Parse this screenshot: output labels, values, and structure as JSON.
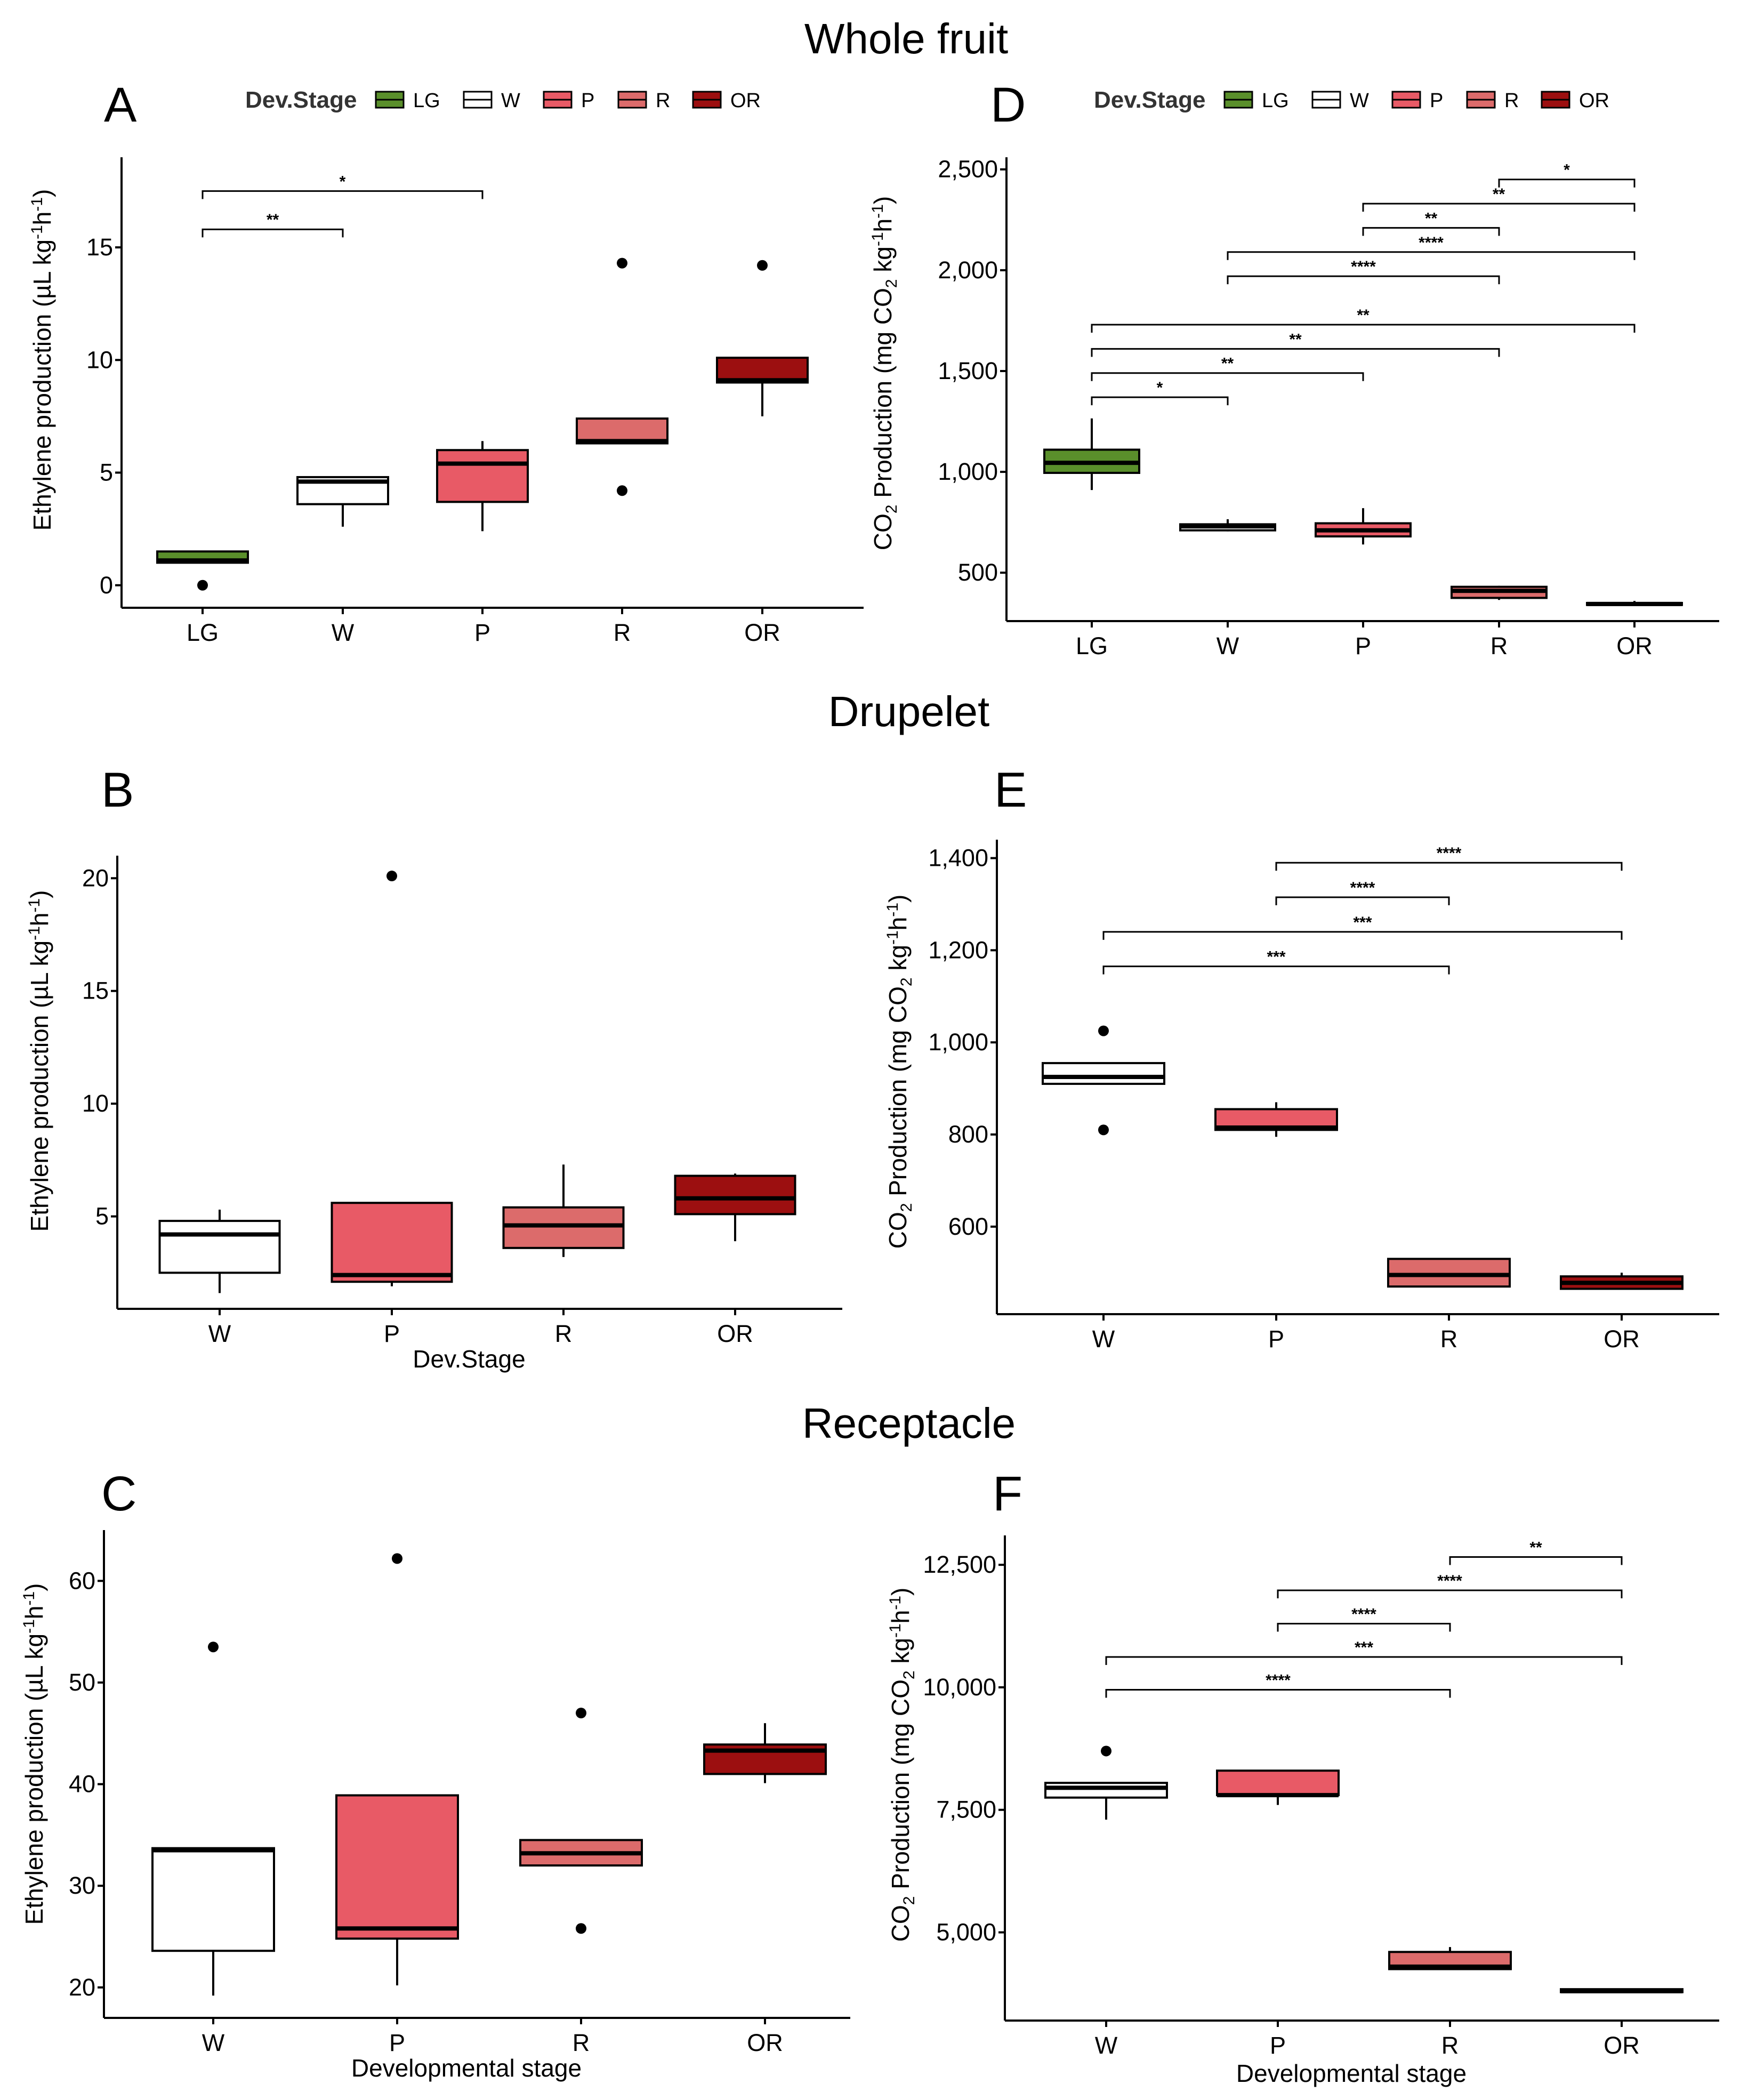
{
  "figure": {
    "titles": {
      "whole_fruit": "Whole fruit",
      "drupelet": "Drupelet",
      "receptacle": "Receptacle"
    },
    "legend": {
      "title": "Dev.Stage",
      "entries": [
        {
          "label": "LG",
          "color": "#5a8f2b"
        },
        {
          "label": "W",
          "color": "#ffffff"
        },
        {
          "label": "P",
          "color": "#e85a66"
        },
        {
          "label": "R",
          "color": "#dc6b6b"
        },
        {
          "label": "OR",
          "color": "#9c0f10"
        }
      ]
    },
    "colors": {
      "LG": "#5a8f2b",
      "W": "#ffffff",
      "P": "#e85a66",
      "R": "#dc6b6b",
      "OR": "#9c0f10"
    }
  },
  "chart_data": [
    {
      "panel": "A",
      "type": "box",
      "section": "Whole fruit",
      "ylabel": "Ethylene production (µL kg-1h-1)",
      "xlabel": "",
      "ylim": [
        -1,
        19
      ],
      "yticks": [
        0,
        5,
        10,
        15
      ],
      "categories": [
        "LG",
        "W",
        "P",
        "R",
        "OR"
      ],
      "boxes": [
        {
          "cat": "LG",
          "min": 1.0,
          "q1": 1.0,
          "median": 1.1,
          "q3": 1.5,
          "max": 1.5,
          "outliers": [
            0.0
          ]
        },
        {
          "cat": "W",
          "min": 2.6,
          "q1": 3.6,
          "median": 4.6,
          "q3": 4.8,
          "max": 4.8,
          "outliers": []
        },
        {
          "cat": "P",
          "min": 2.4,
          "q1": 3.7,
          "median": 5.4,
          "q3": 6.0,
          "max": 6.4,
          "outliers": []
        },
        {
          "cat": "R",
          "min": 6.3,
          "q1": 6.3,
          "median": 6.4,
          "q3": 7.4,
          "max": 7.4,
          "outliers": [
            14.3,
            4.2
          ]
        },
        {
          "cat": "OR",
          "min": 7.5,
          "q1": 9.0,
          "median": 9.1,
          "q3": 10.1,
          "max": 10.1,
          "outliers": [
            14.2
          ]
        }
      ],
      "brackets": [
        {
          "from": "LG",
          "to": "W",
          "y": 15.8,
          "label": "**"
        },
        {
          "from": "LG",
          "to": "P",
          "y": 17.5,
          "label": "*"
        }
      ]
    },
    {
      "panel": "D",
      "type": "box",
      "section": "Whole fruit",
      "ylabel": "CO2 Production (mg CO2 kg-1h-1)",
      "xlabel": "",
      "ylim": [
        260,
        2560
      ],
      "yticks": [
        500,
        1000,
        1500,
        2000,
        2500
      ],
      "ytick_labels": [
        "500",
        "1,000",
        "1,500",
        "2,000",
        "2,500"
      ],
      "categories": [
        "LG",
        "W",
        "P",
        "R",
        "OR"
      ],
      "boxes": [
        {
          "cat": "LG",
          "min": 910,
          "q1": 995,
          "median": 1045,
          "q3": 1110,
          "max": 1265,
          "outliers": []
        },
        {
          "cat": "W",
          "min": 705,
          "q1": 710,
          "median": 730,
          "q3": 740,
          "max": 765,
          "outliers": []
        },
        {
          "cat": "P",
          "min": 640,
          "q1": 680,
          "median": 710,
          "q3": 745,
          "max": 820,
          "outliers": []
        },
        {
          "cat": "R",
          "min": 365,
          "q1": 375,
          "median": 410,
          "q3": 430,
          "max": 435,
          "outliers": []
        },
        {
          "cat": "OR",
          "min": 340,
          "q1": 340,
          "median": 345,
          "q3": 350,
          "max": 360,
          "outliers": []
        }
      ],
      "brackets": [
        {
          "from": "LG",
          "to": "W",
          "y": 1370,
          "label": "*"
        },
        {
          "from": "LG",
          "to": "P",
          "y": 1490,
          "label": "**"
        },
        {
          "from": "LG",
          "to": "R",
          "y": 1610,
          "label": "**"
        },
        {
          "from": "LG",
          "to": "OR",
          "y": 1730,
          "label": "**"
        },
        {
          "from": "W",
          "to": "R",
          "y": 1970,
          "label": "****"
        },
        {
          "from": "W",
          "to": "OR",
          "y": 2090,
          "label": "****"
        },
        {
          "from": "P",
          "to": "R",
          "y": 2210,
          "label": "**"
        },
        {
          "from": "P",
          "to": "OR",
          "y": 2330,
          "label": "**"
        },
        {
          "from": "R",
          "to": "OR",
          "y": 2450,
          "label": "*"
        }
      ]
    },
    {
      "panel": "B",
      "type": "box",
      "section": "Drupelet",
      "ylabel": "Ethylene production (µL kg-1h-1)",
      "xlabel": "Dev.Stage",
      "ylim": [
        0.9,
        21.0
      ],
      "yticks": [
        5,
        10,
        15,
        20
      ],
      "categories": [
        "W",
        "P",
        "R",
        "OR"
      ],
      "boxes": [
        {
          "cat": "W",
          "min": 1.6,
          "q1": 2.5,
          "median": 4.2,
          "q3": 4.8,
          "max": 5.3,
          "outliers": []
        },
        {
          "cat": "P",
          "min": 1.9,
          "q1": 2.1,
          "median": 2.4,
          "q3": 5.6,
          "max": 5.6,
          "outliers": [
            20.1
          ]
        },
        {
          "cat": "R",
          "min": 3.2,
          "q1": 3.6,
          "median": 4.6,
          "q3": 5.4,
          "max": 7.3,
          "outliers": []
        },
        {
          "cat": "OR",
          "min": 3.9,
          "q1": 5.1,
          "median": 5.8,
          "q3": 6.8,
          "max": 6.9,
          "outliers": []
        }
      ],
      "brackets": []
    },
    {
      "panel": "E",
      "type": "box",
      "section": "Drupelet",
      "ylabel": "CO2 Production (mg CO2 kg-1h-1)",
      "xlabel": "",
      "ylim": [
        410,
        1440
      ],
      "yticks": [
        600,
        800,
        1000,
        1200,
        1400
      ],
      "ytick_labels": [
        "600",
        "800",
        "1,000",
        "1,200",
        "1,400"
      ],
      "categories": [
        "W",
        "P",
        "R",
        "OR"
      ],
      "boxes": [
        {
          "cat": "W",
          "min": 910,
          "q1": 910,
          "median": 925,
          "q3": 955,
          "max": 955,
          "outliers": [
            1025,
            810
          ]
        },
        {
          "cat": "P",
          "min": 795,
          "q1": 810,
          "median": 815,
          "q3": 855,
          "max": 870,
          "outliers": []
        },
        {
          "cat": "R",
          "min": 470,
          "q1": 470,
          "median": 495,
          "q3": 530,
          "max": 530,
          "outliers": []
        },
        {
          "cat": "OR",
          "min": 465,
          "q1": 465,
          "median": 478,
          "q3": 492,
          "max": 500,
          "outliers": []
        }
      ],
      "brackets": [
        {
          "from": "W",
          "to": "R",
          "y": 1165,
          "label": "***"
        },
        {
          "from": "W",
          "to": "OR",
          "y": 1240,
          "label": "***"
        },
        {
          "from": "P",
          "to": "R",
          "y": 1315,
          "label": "****"
        },
        {
          "from": "P",
          "to": "OR",
          "y": 1390,
          "label": "****"
        }
      ]
    },
    {
      "panel": "C",
      "type": "box",
      "section": "Receptacle",
      "ylabel": "Ethylene production (µL kg-1h-1)",
      "xlabel": "Developmental stage",
      "ylim": [
        17,
        65
      ],
      "yticks": [
        20,
        30,
        40,
        50,
        60
      ],
      "categories": [
        "W",
        "P",
        "R",
        "OR"
      ],
      "boxes": [
        {
          "cat": "W",
          "min": 19.2,
          "q1": 23.6,
          "median": 33.5,
          "q3": 33.7,
          "max": 33.7,
          "outliers": [
            53.5
          ]
        },
        {
          "cat": "P",
          "min": 20.2,
          "q1": 24.8,
          "median": 25.8,
          "q3": 38.9,
          "max": 38.9,
          "outliers": [
            62.2
          ]
        },
        {
          "cat": "R",
          "min": 32.0,
          "q1": 32.0,
          "median": 33.2,
          "q3": 34.5,
          "max": 34.5,
          "outliers": [
            47.0,
            25.8
          ]
        },
        {
          "cat": "OR",
          "min": 40.1,
          "q1": 41.0,
          "median": 43.3,
          "q3": 43.9,
          "max": 46.0,
          "outliers": []
        }
      ],
      "brackets": []
    },
    {
      "panel": "F",
      "type": "box",
      "section": "Receptacle",
      "ylabel": "CO2 Production (mg CO2 kg-1h-1)",
      "xlabel": "Developmental stage",
      "ylim": [
        3200,
        13100
      ],
      "yticks": [
        5000,
        7500,
        10000,
        12500
      ],
      "ytick_labels": [
        "5,000",
        "7,500",
        "10,000",
        "12,500"
      ],
      "categories": [
        "W",
        "P",
        "R",
        "OR"
      ],
      "boxes": [
        {
          "cat": "W",
          "min": 7300,
          "q1": 7750,
          "median": 7950,
          "q3": 8050,
          "max": 8050,
          "outliers": [
            8700
          ]
        },
        {
          "cat": "P",
          "min": 7600,
          "q1": 7800,
          "median": 7800,
          "q3": 8300,
          "max": 8300,
          "outliers": []
        },
        {
          "cat": "R",
          "min": 4250,
          "q1": 4250,
          "median": 4300,
          "q3": 4600,
          "max": 4700,
          "outliers": []
        },
        {
          "cat": "OR",
          "min": 3780,
          "q1": 3780,
          "median": 3800,
          "q3": 3840,
          "max": 3840,
          "outliers": []
        }
      ],
      "brackets": [
        {
          "from": "W",
          "to": "R",
          "y": 9950,
          "label": "****"
        },
        {
          "from": "W",
          "to": "OR",
          "y": 10620,
          "label": "***"
        },
        {
          "from": "P",
          "to": "R",
          "y": 11300,
          "label": "****"
        },
        {
          "from": "P",
          "to": "OR",
          "y": 11980,
          "label": "****"
        },
        {
          "from": "R",
          "to": "OR",
          "y": 12660,
          "label": "**"
        }
      ]
    }
  ]
}
